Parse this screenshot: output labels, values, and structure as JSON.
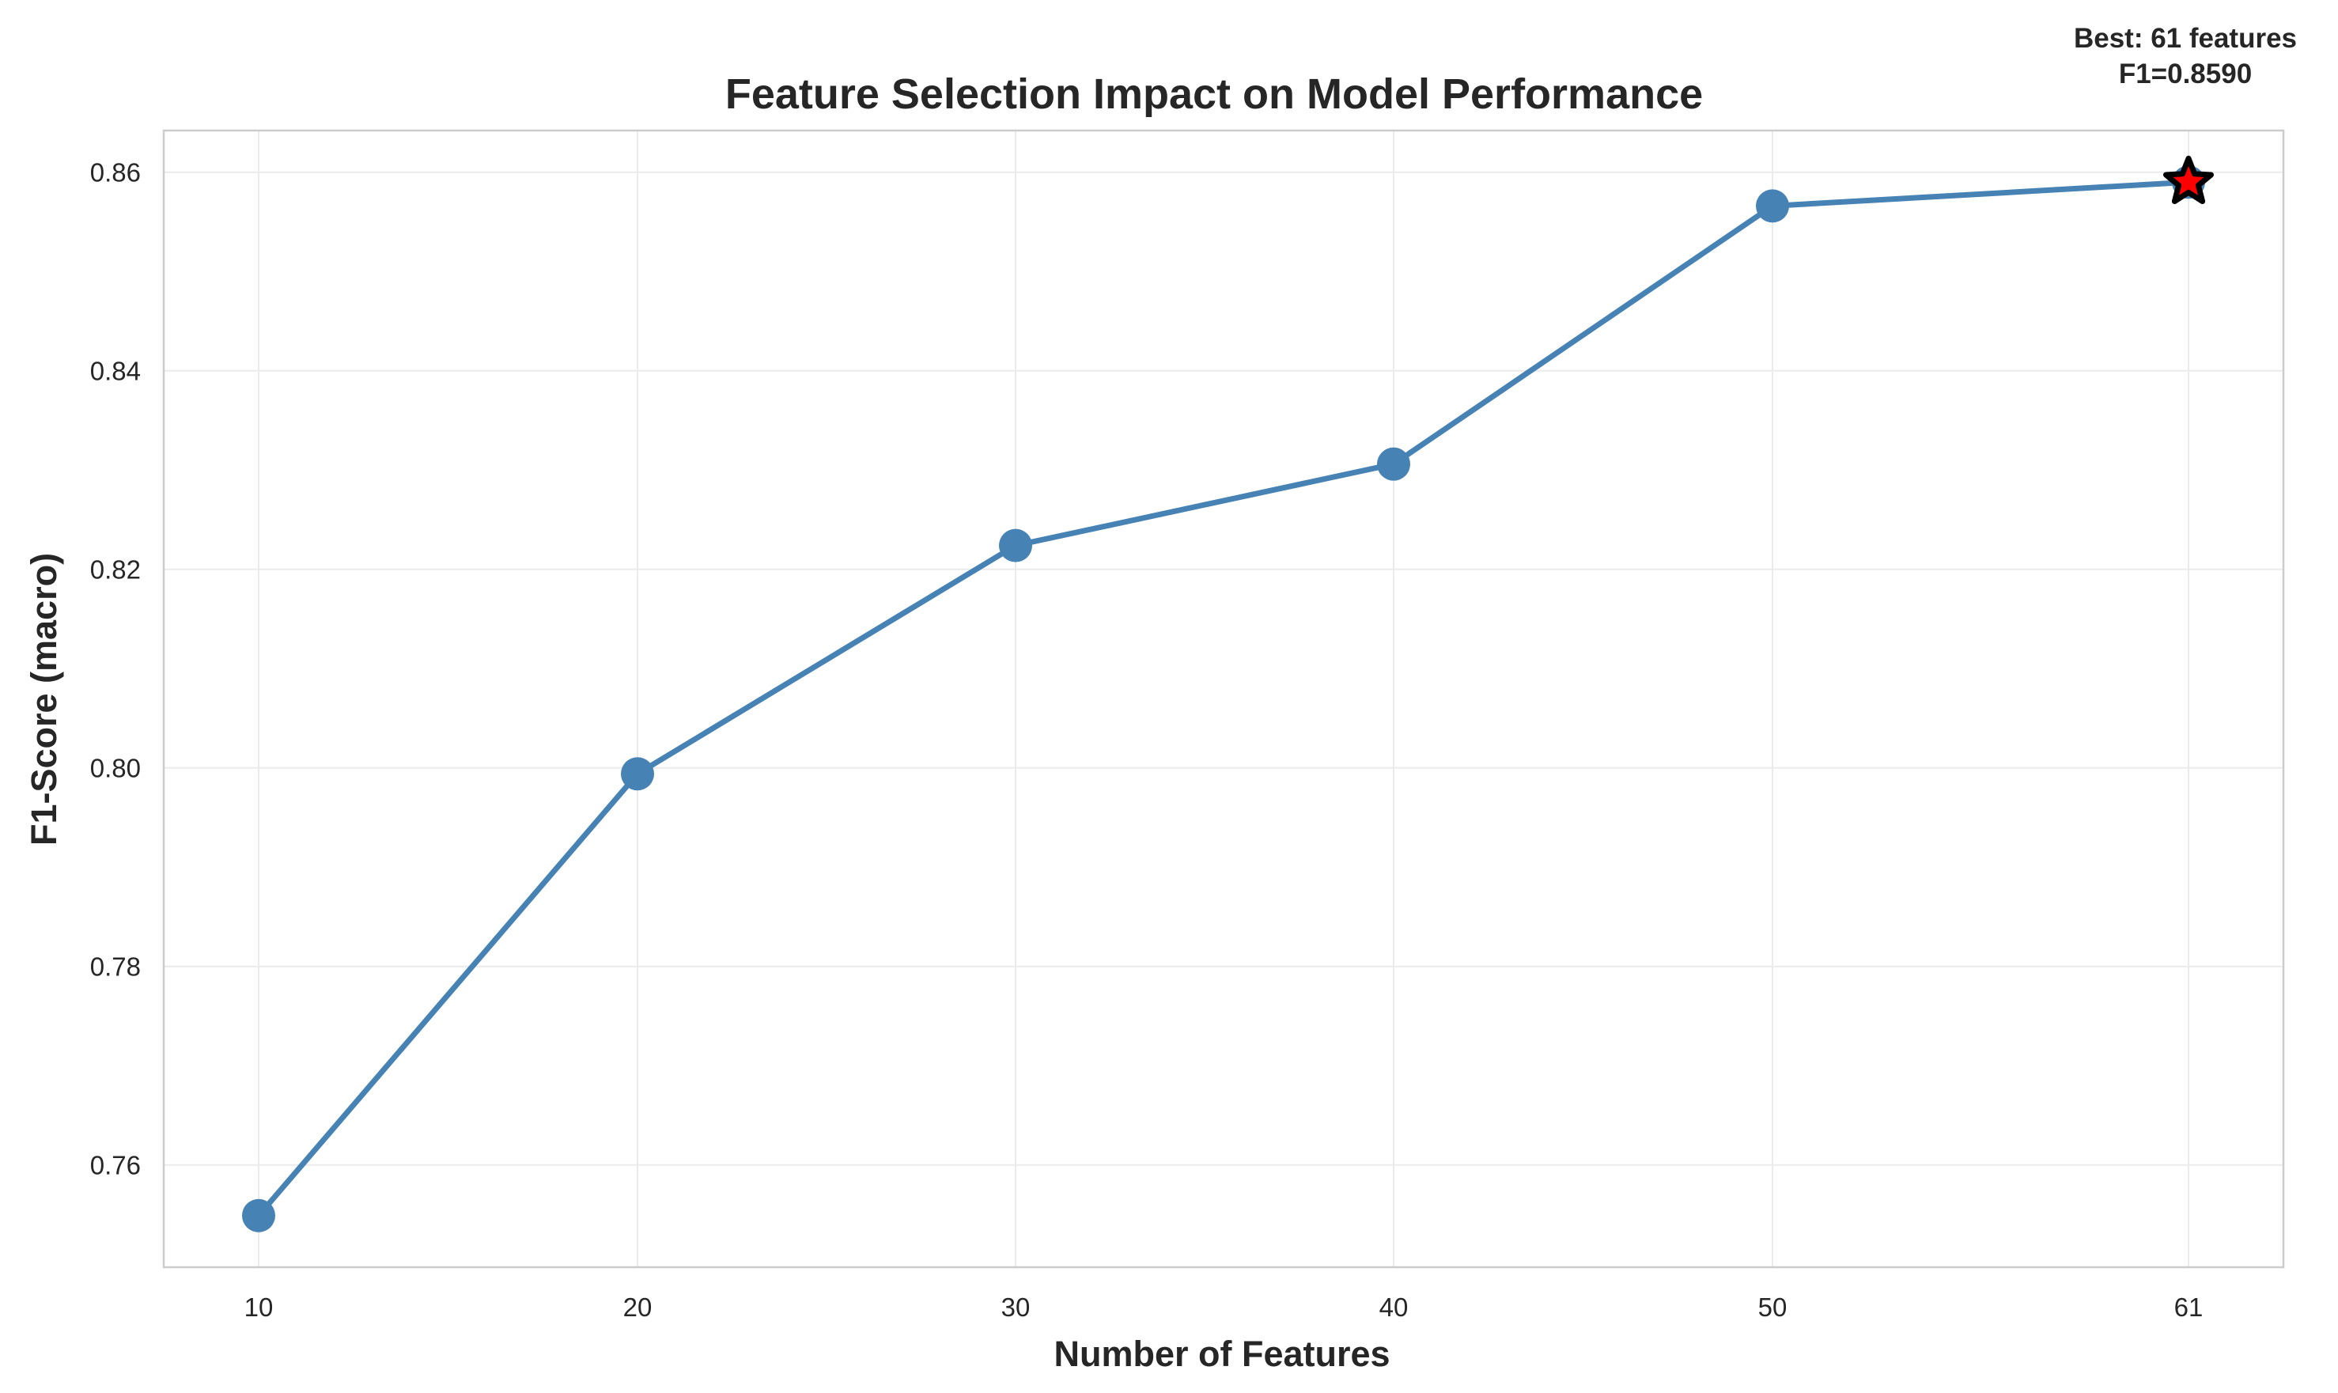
{
  "chart_data": {
    "type": "line",
    "title": "Feature Selection Impact on Model Performance",
    "xlabel": "Number of Features",
    "ylabel": "F1-Score (macro)",
    "x": [
      10,
      20,
      30,
      40,
      50,
      61
    ],
    "series": [
      {
        "values": [
          0.7549,
          0.7994,
          0.8224,
          0.8306,
          0.8566,
          0.859
        ]
      }
    ],
    "xticks": [
      "10",
      "20",
      "30",
      "40",
      "50",
      "61"
    ],
    "yticks": [
      0.76,
      0.78,
      0.8,
      0.82,
      0.84,
      0.86
    ],
    "ytick_labels": [
      "0.76",
      "0.78",
      "0.80",
      "0.82",
      "0.84",
      "0.86"
    ],
    "ylim": [
      0.7497,
      0.8642
    ],
    "grid": true,
    "highlight": {
      "x": 61,
      "y": 0.859,
      "marker": "star",
      "color": "#ff0000"
    },
    "annotation": {
      "line1": "Best: 61 features",
      "line2": "F1=0.8590"
    },
    "colors": {
      "line": "#4682b4",
      "star_fill": "#ff0000",
      "star_edge": "#000000"
    }
  }
}
